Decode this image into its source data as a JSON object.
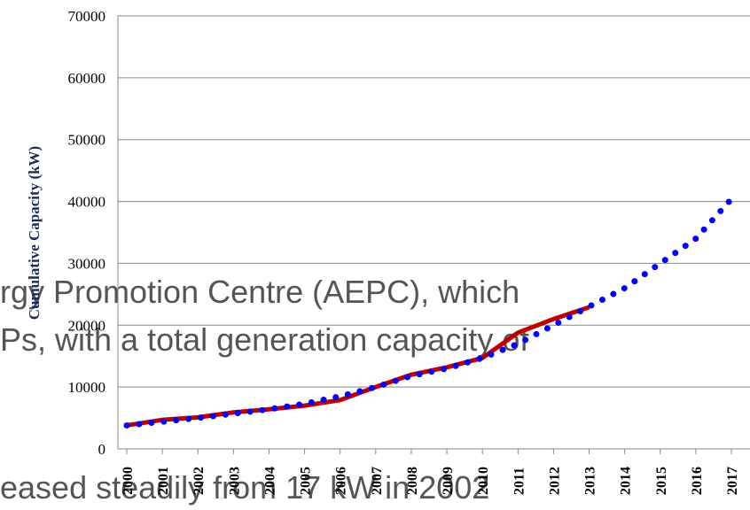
{
  "chart_data": {
    "type": "line",
    "y_label": "Cumulative Capacity (kW)",
    "categories": [
      "2000",
      "2001",
      "2002",
      "2003",
      "2004",
      "2005",
      "2006",
      "2007",
      "2008",
      "2009",
      "2010",
      "2011",
      "2012",
      "2013",
      "2014",
      "2015",
      "2016",
      "2017"
    ],
    "series": [
      {
        "color": "#c00000",
        "style": "solid",
        "values": [
          3800,
          4700,
          5100,
          5900,
          6400,
          7000,
          7900,
          10000,
          12000,
          13200,
          14700,
          18800,
          21000,
          22900,
          null,
          null,
          null,
          null
        ]
      },
      {
        "color": "#0000ff",
        "style": "dotted",
        "values": [
          3800,
          4400,
          5000,
          5700,
          6400,
          7300,
          8500,
          10000,
          11800,
          13000,
          14700,
          17000,
          20000,
          23000,
          26000,
          30000,
          34000,
          40400
        ]
      }
    ],
    "ylim": [
      0,
      70000
    ],
    "yticks": [
      0,
      10000,
      20000,
      30000,
      40000,
      50000,
      60000,
      70000
    ],
    "grid": true,
    "overlay_text": [
      "rgy Promotion Centre (AEPC), which",
      "Ps, with a total generation capacity of",
      "eased steadily from 17 kW in 2002"
    ]
  }
}
